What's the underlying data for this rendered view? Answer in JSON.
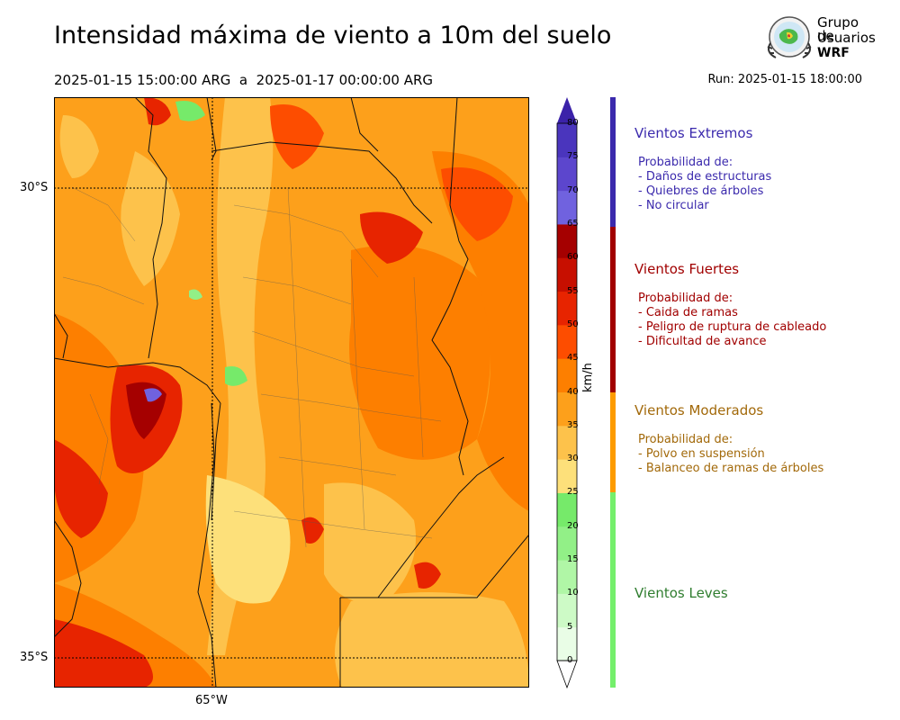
{
  "header": {
    "title": "Intensidad máxima de viento a 10m del suelo",
    "period": "2025-01-15 15:00:00 ARG  a  2025-01-17 00:00:00 ARG",
    "run": "Run: 2025-01-15 18:00:00"
  },
  "logo": {
    "line1": "Grupo de",
    "line2": "Usuarios",
    "line3": "WRF"
  },
  "map": {
    "lat_labels": [
      "30°S",
      "35°S"
    ],
    "lon_labels": [
      "65°W"
    ]
  },
  "colorbar": {
    "unit": "km/h",
    "ticks": [
      "0",
      "5",
      "10",
      "15",
      "20",
      "25",
      "30",
      "35",
      "40",
      "45",
      "50",
      "55",
      "60",
      "65",
      "70",
      "75",
      "80"
    ],
    "colors": [
      "#e9fde6",
      "#cdfac6",
      "#b0f6a6",
      "#92f087",
      "#76ea6a",
      "#fde07a",
      "#fdc24b",
      "#fda01b",
      "#fd7f00",
      "#fd4d00",
      "#e72400",
      "#c70f00",
      "#a50000",
      "#7062df",
      "#5c46cd",
      "#4a35bd",
      "#3b22a9"
    ]
  },
  "categories": [
    {
      "title": "Vientos Extremos",
      "color": "#3b2aad",
      "lines": [
        "Probabilidad de:",
        "- Daños de estructuras",
        "- Quiebres de árboles",
        "- No circular"
      ]
    },
    {
      "title": "Vientos Fuertes",
      "color": "#a10000",
      "lines": [
        "Probabilidad de:",
        "- Caida de ramas",
        "- Peligro de ruptura de cableado",
        "- Dificultad de avance"
      ]
    },
    {
      "title": "Vientos Moderados",
      "color": "#a2690a",
      "bar_color": "#fd9b00",
      "lines": [
        "Probabilidad de:",
        "- Polvo en suspensión",
        "- Balanceo de ramas de árboles"
      ]
    },
    {
      "title": "Vientos Leves",
      "color": "#2f7d2f",
      "bar_color": "#74ef6b",
      "lines": []
    }
  ]
}
